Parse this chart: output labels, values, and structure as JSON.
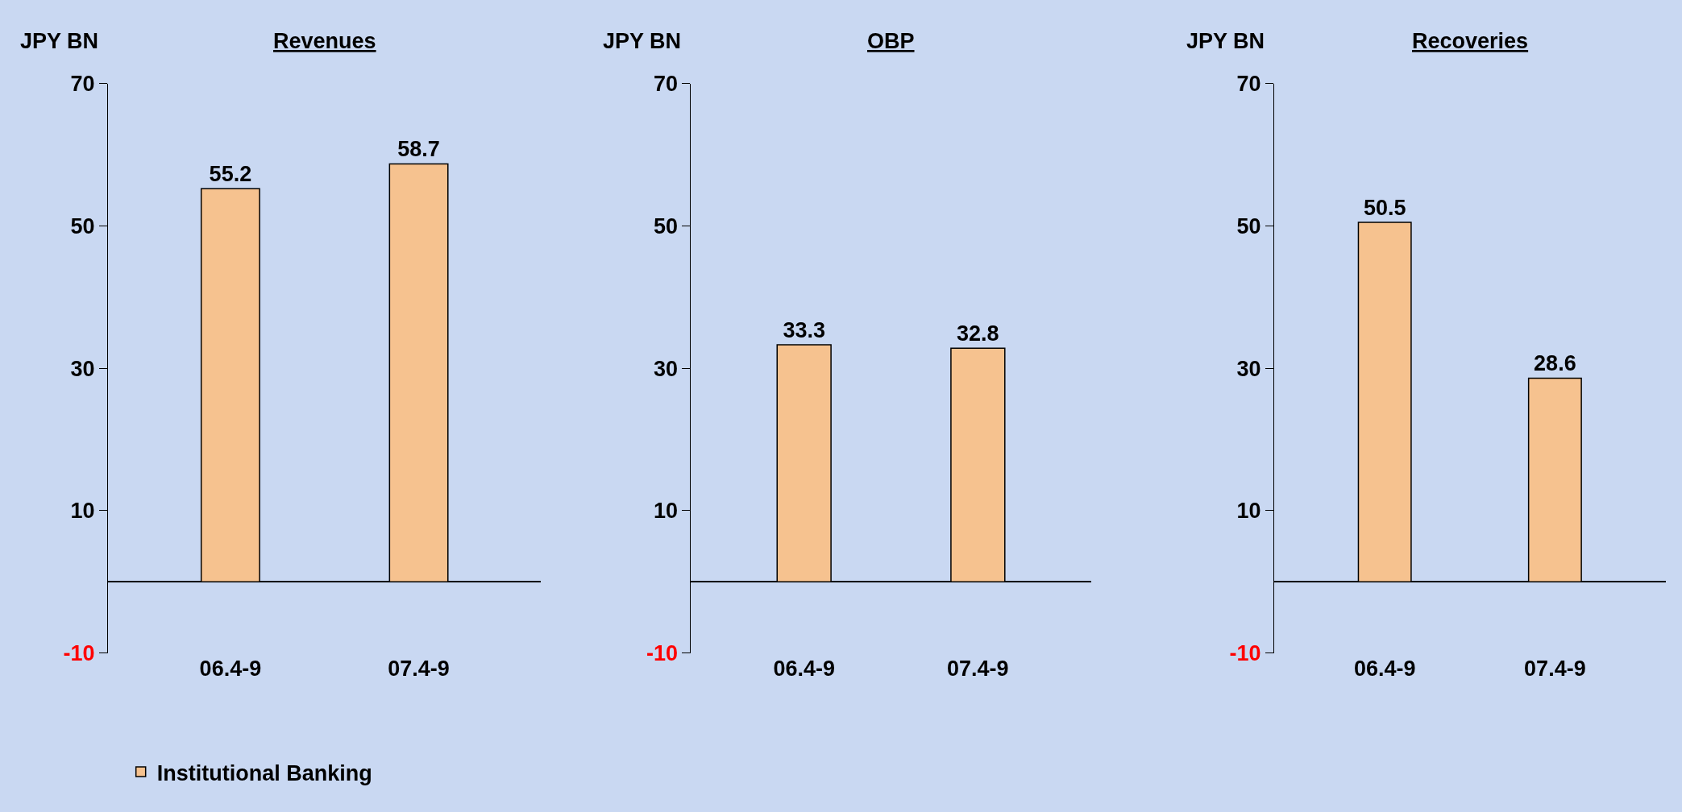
{
  "chart_data": [
    {
      "type": "bar",
      "title": "Revenues",
      "ylabel": "JPY BN",
      "categories": [
        "06.4-9",
        "07.4-9"
      ],
      "series": [
        {
          "name": "Institutional Banking",
          "color": "#f6c28f",
          "values": [
            55.2,
            58.7
          ]
        }
      ],
      "ylim": [
        -10,
        70
      ],
      "yticks": [
        70,
        50,
        30,
        10,
        -10
      ],
      "data_labels": true,
      "legend": "bottom left",
      "grid": false
    },
    {
      "type": "bar",
      "title": "OBP",
      "ylabel": "JPY BN",
      "categories": [
        "06.4-9",
        "07.4-9"
      ],
      "series": [
        {
          "color": "#f6c28f",
          "values": [
            33.3,
            32.8
          ]
        }
      ],
      "ylim": [
        -10,
        70
      ],
      "yticks": [
        70,
        50,
        30,
        10,
        -10
      ],
      "data_labels": true,
      "grid": false
    },
    {
      "type": "bar",
      "title": "Recoveries",
      "ylabel": "JPY BN",
      "categories": [
        "06.4-9",
        "07.4-9"
      ],
      "series": [
        {
          "color": "#f6c28f",
          "values": [
            50.5,
            28.6
          ]
        }
      ],
      "ylim": [
        -10,
        70
      ],
      "yticks": [
        70,
        50,
        30,
        10,
        -10
      ],
      "data_labels": true,
      "grid": false
    }
  ]
}
